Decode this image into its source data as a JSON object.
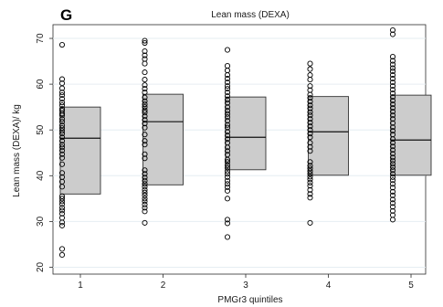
{
  "panel_letter": "G",
  "chart_data": {
    "type": "box",
    "title": "Lean mass (DEXA)",
    "xlabel": "PMGr3 quintiles",
    "ylabel": "Lean mass (DEXA)/ kg",
    "categories": [
      "1",
      "2",
      "3",
      "4",
      "5"
    ],
    "ylim": [
      18.5,
      73
    ],
    "yticks": [
      20,
      30,
      40,
      50,
      60,
      70
    ],
    "grid": true,
    "colors": {
      "box_fill": "#cccccc",
      "box_stroke": "#333333",
      "grid": "#e6eef2",
      "point_stroke": "#000000"
    },
    "boxes": [
      {
        "category": "1",
        "q1": 36.0,
        "median": 48.2,
        "q3": 55.0
      },
      {
        "category": "2",
        "q1": 38.0,
        "median": 51.8,
        "q3": 57.8
      },
      {
        "category": "3",
        "q1": 41.3,
        "median": 48.4,
        "q3": 57.2
      },
      {
        "category": "4",
        "q1": 40.1,
        "median": 49.6,
        "q3": 57.3
      },
      {
        "category": "5",
        "q1": 40.1,
        "median": 47.8,
        "q3": 57.6
      }
    ],
    "points": [
      {
        "category": "1",
        "values": [
          68.6,
          61.1,
          60.2,
          59.1,
          58.2,
          57.6,
          56.8,
          56.0,
          55.4,
          54.6,
          54.2,
          53.6,
          53.2,
          52.4,
          51.8,
          51.0,
          50.4,
          49.8,
          49.2,
          48.4,
          47.6,
          46.8,
          46.2,
          45.5,
          44.7,
          43.9,
          42.5,
          40.6,
          39.7,
          38.7,
          37.6,
          35.5,
          35.0,
          34.4,
          33.8,
          33.0,
          32.4,
          31.7,
          30.8,
          29.8,
          29.1,
          24.0,
          22.7
        ]
      },
      {
        "category": "2",
        "values": [
          69.5,
          69.0,
          67.2,
          66.3,
          65.5,
          64.5,
          62.6,
          61.0,
          59.8,
          59.0,
          58.2,
          57.1,
          56.3,
          55.6,
          55.0,
          54.3,
          53.8,
          53.0,
          52.2,
          51.4,
          50.5,
          49.0,
          47.6,
          46.8,
          44.7,
          43.8,
          41.2,
          40.4,
          39.6,
          38.9,
          38.2,
          37.6,
          36.9,
          36.3,
          35.7,
          35.0,
          34.4,
          33.7,
          33.0,
          32.2,
          29.7
        ]
      },
      {
        "category": "3",
        "values": [
          67.5,
          64.0,
          63.0,
          62.0,
          61.2,
          60.4,
          59.6,
          59.0,
          58.2,
          57.4,
          56.6,
          55.9,
          55.0,
          54.2,
          53.5,
          52.8,
          52.0,
          51.1,
          50.5,
          49.6,
          48.8,
          48.0,
          47.2,
          46.2,
          45.4,
          44.6,
          43.5,
          43.0,
          42.3,
          41.7,
          41.0,
          40.4,
          39.7,
          38.9,
          38.2,
          37.5,
          36.7,
          35.0,
          30.4,
          29.6,
          26.6
        ]
      },
      {
        "category": "4",
        "values": [
          64.5,
          63.3,
          62.0,
          61.0,
          59.6,
          58.7,
          57.7,
          57.0,
          56.2,
          55.4,
          54.7,
          53.9,
          53.2,
          52.4,
          51.6,
          50.8,
          50.0,
          49.2,
          48.4,
          47.2,
          46.3,
          45.4,
          43.0,
          42.2,
          41.6,
          41.0,
          40.4,
          39.8,
          39.2,
          38.5,
          37.8,
          36.9,
          36.0,
          35.2,
          29.7
        ]
      },
      {
        "category": "5",
        "values": [
          71.8,
          70.9,
          66.0,
          65.1,
          64.3,
          63.5,
          62.8,
          62.0,
          61.2,
          60.4,
          59.6,
          58.8,
          58.0,
          57.2,
          56.4,
          55.6,
          54.8,
          54.0,
          53.2,
          52.4,
          51.5,
          50.6,
          49.8,
          49.0,
          48.0,
          47.2,
          46.4,
          45.6,
          44.8,
          44.0,
          43.3,
          42.6,
          41.9,
          41.2,
          40.4,
          39.7,
          39.0,
          38.2,
          37.4,
          36.5,
          35.7,
          34.8,
          34.0,
          33.2,
          32.3,
          31.4,
          30.4
        ]
      }
    ]
  }
}
